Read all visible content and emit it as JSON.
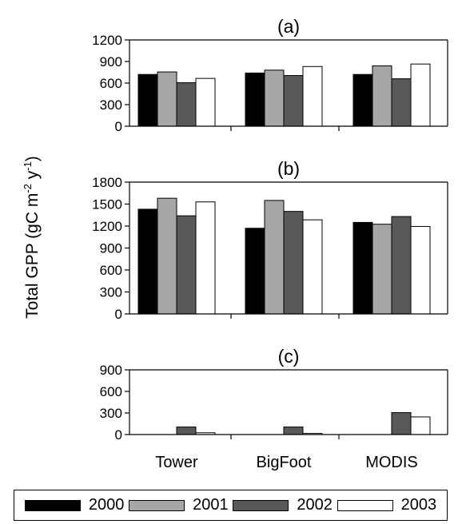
{
  "y_axis_label": {
    "main": "Total GPP (gC m",
    "sup1": "-2",
    "mid": " y",
    "sup2": "-1",
    "end": ")"
  },
  "colors": {
    "2000": "#000000",
    "2001": "#a6a6a6",
    "2002": "#595959",
    "2003": "#ffffff"
  },
  "legend": [
    {
      "name": "2000",
      "color": "#000000"
    },
    {
      "name": "2001",
      "color": "#a6a6a6"
    },
    {
      "name": "2002",
      "color": "#595959"
    },
    {
      "name": "2003",
      "color": "#ffffff"
    }
  ],
  "chart_data": [
    {
      "type": "bar",
      "title": "(a)",
      "categories": [
        "Tower",
        "BigFoot",
        "MODIS"
      ],
      "ylim": [
        0,
        1200
      ],
      "yticks": [
        0,
        300,
        600,
        900,
        1200
      ],
      "show_category_labels": false,
      "series": [
        {
          "name": "2000",
          "values": [
            720,
            740,
            720
          ]
        },
        {
          "name": "2001",
          "values": [
            755,
            780,
            840
          ]
        },
        {
          "name": "2002",
          "values": [
            605,
            705,
            660
          ]
        },
        {
          "name": "2003",
          "values": [
            665,
            830,
            865
          ]
        }
      ]
    },
    {
      "type": "bar",
      "title": "(b)",
      "categories": [
        "Tower",
        "BigFoot",
        "MODIS"
      ],
      "ylim": [
        0,
        1800
      ],
      "yticks": [
        0,
        300,
        600,
        900,
        1200,
        1500,
        1800
      ],
      "show_category_labels": false,
      "series": [
        {
          "name": "2000",
          "values": [
            1430,
            1170,
            1250
          ]
        },
        {
          "name": "2001",
          "values": [
            1580,
            1550,
            1225
          ]
        },
        {
          "name": "2002",
          "values": [
            1340,
            1400,
            1330
          ]
        },
        {
          "name": "2003",
          "values": [
            1530,
            1285,
            1195
          ]
        }
      ]
    },
    {
      "type": "bar",
      "title": "(c)",
      "categories": [
        "Tower",
        "BigFoot",
        "MODIS"
      ],
      "ylim": [
        0,
        900
      ],
      "yticks": [
        0,
        300,
        600,
        900
      ],
      "show_category_labels": true,
      "series": [
        {
          "name": "2000",
          "values": [
            0,
            0,
            0
          ]
        },
        {
          "name": "2001",
          "values": [
            0,
            0,
            0
          ]
        },
        {
          "name": "2002",
          "values": [
            105,
            105,
            305
          ]
        },
        {
          "name": "2003",
          "values": [
            25,
            15,
            245
          ]
        }
      ]
    }
  ]
}
